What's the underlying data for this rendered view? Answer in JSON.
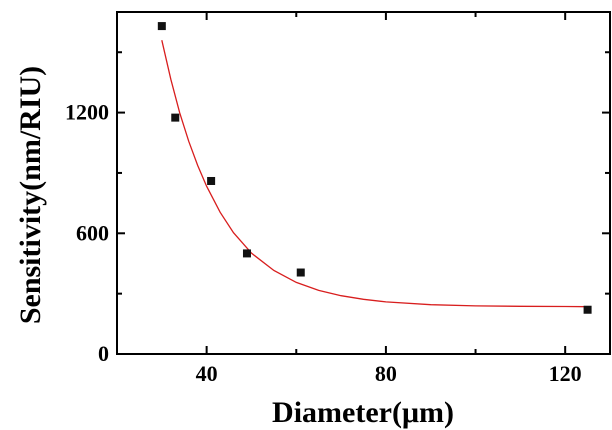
{
  "chart_data": {
    "type": "scatter",
    "xlabel": "Diameter(μm)",
    "ylabel": "Sensitivity(nm/RIU)",
    "xlim": [
      20,
      130
    ],
    "ylim": [
      0,
      1700
    ],
    "x_ticks": [
      40,
      80,
      120
    ],
    "y_ticks": [
      0,
      600,
      1200
    ],
    "x_tick_labels": [
      "40",
      "80",
      "120"
    ],
    "y_tick_labels": [
      "0",
      "600",
      "1200"
    ],
    "grid": false,
    "legend": "none",
    "colors": {
      "points": "#111111",
      "fit": "#d81e1e",
      "axes": "#000000"
    },
    "series": [
      {
        "kind": "points",
        "x": [
          30,
          33,
          41,
          49,
          61,
          125
        ],
        "y": [
          1630,
          1175,
          860,
          500,
          405,
          220
        ]
      },
      {
        "kind": "fit-curve",
        "model": "exponential decay",
        "x": [
          30,
          32,
          34,
          36,
          38,
          40,
          43,
          46,
          50,
          55,
          60,
          65,
          70,
          75,
          80,
          90,
          100,
          110,
          120,
          125
        ],
        "y": [
          1560,
          1366,
          1199,
          1058,
          937,
          834,
          705,
          603,
          501,
          415,
          356,
          316,
          290,
          272,
          259,
          245,
          239,
          237,
          236,
          235
        ]
      }
    ]
  }
}
